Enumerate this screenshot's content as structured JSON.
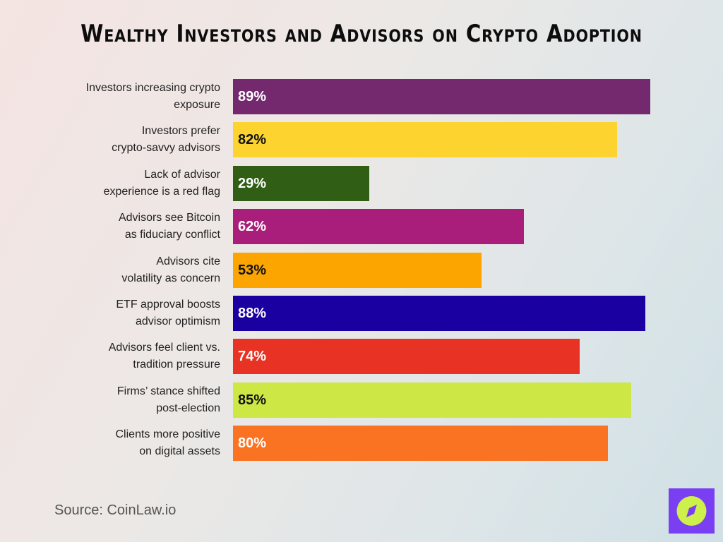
{
  "chart_data": {
    "type": "bar",
    "orientation": "horizontal",
    "title": "Wealthy Investors and Advisors on Crypto Adoption",
    "categories": [
      "Investors increasing crypto exposure",
      "Investors prefer crypto-savvy advisors",
      "Lack of advisor experience is a red flag",
      "Advisors see Bitcoin as fiduciary conflict",
      "Advisors cite volatility as concern",
      "ETF approval boosts advisor optimism",
      "Advisors feel client vs. tradition pressure",
      "Firms’ stance shifted post-election",
      "Clients more positive on digital assets"
    ],
    "category_lines": [
      [
        "Investors increasing crypto",
        "exposure"
      ],
      [
        "Investors prefer",
        "crypto-savvy advisors"
      ],
      [
        "Lack of advisor",
        "experience is a red flag"
      ],
      [
        "Advisors see Bitcoin",
        "as fiduciary conflict"
      ],
      [
        "Advisors cite",
        "volatility as concern"
      ],
      [
        "ETF approval boosts",
        "advisor optimism"
      ],
      [
        "Advisors feel client vs.",
        "tradition pressure"
      ],
      [
        "Firms’ stance shifted",
        "post-election"
      ],
      [
        "Clients more positive",
        "on digital assets"
      ]
    ],
    "values": [
      89,
      82,
      29,
      62,
      53,
      88,
      74,
      85,
      80
    ],
    "labels": [
      "89%",
      "82%",
      "29%",
      "62%",
      "53%",
      "88%",
      "74%",
      "85%",
      "80%"
    ],
    "colors": [
      "#74296e",
      "#fdd42f",
      "#2f5e14",
      "#a81e7a",
      "#fca500",
      "#1a00a0",
      "#e83223",
      "#cde844",
      "#fa7322"
    ],
    "label_colors": [
      "#ffffff",
      "#111111",
      "#ffffff",
      "#ffffff",
      "#111111",
      "#ffffff",
      "#ffffff",
      "#111111",
      "#ffffff"
    ],
    "xlim": [
      0,
      100
    ],
    "grid": false,
    "legend": "none"
  },
  "source": "Source: CoinLaw.io",
  "logo": {
    "icon": "compass-icon",
    "bg": "#7a3ff2",
    "fg": "#cdf04a"
  }
}
